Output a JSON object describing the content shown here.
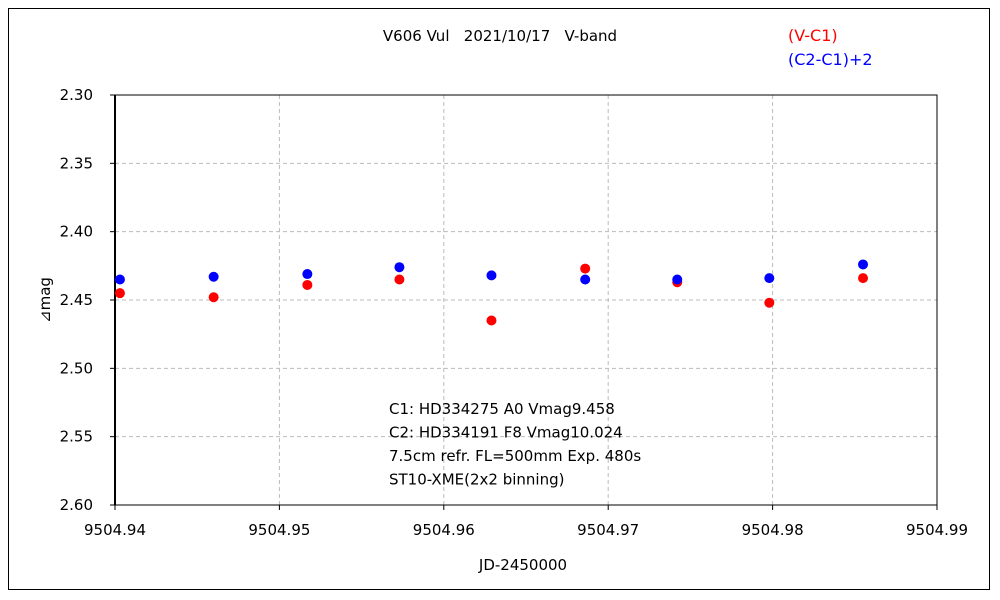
{
  "chart_data": {
    "type": "scatter",
    "title": "V606 Vul   2021/10/17   V-band",
    "xlabel": "JD-2450000",
    "ylabel": "⊿mag",
    "xlim": [
      9504.94,
      9504.99
    ],
    "ylim": [
      2.3,
      2.6
    ],
    "y_inverted": true,
    "grid": true,
    "x_ticks": [
      "9504.94",
      "9504.95",
      "9504.96",
      "9504.97",
      "9504.98",
      "9504.99"
    ],
    "y_ticks": [
      "2.30",
      "2.35",
      "2.40",
      "2.45",
      "2.50",
      "2.55",
      "2.60"
    ],
    "legend_placement": "top-right",
    "series": [
      {
        "name": "(V-C1)",
        "color": "#ff0000",
        "x": [
          9504.9403,
          9504.946,
          9504.9517,
          9504.9573,
          9504.9629,
          9504.9686,
          9504.9742,
          9504.9798,
          9504.9855
        ],
        "y": [
          2.445,
          2.448,
          2.439,
          2.435,
          2.465,
          2.427,
          2.437,
          2.452,
          2.434
        ]
      },
      {
        "name": "(C2-C1)+2",
        "color": "#0000ff",
        "x": [
          9504.9403,
          9504.946,
          9504.9517,
          9504.9573,
          9504.9629,
          9504.9686,
          9504.9742,
          9504.9798,
          9504.9855
        ],
        "y": [
          2.435,
          2.433,
          2.431,
          2.426,
          2.432,
          2.435,
          2.435,
          2.434,
          2.424
        ]
      }
    ],
    "annotations": [
      "C1: HD334275 A0 Vmag9.458",
      "C2: HD334191 F8  Vmag10.024",
      "7.5cm refr. FL=500mm Exp. 480s",
      "ST10-XME(2x2 binning)"
    ]
  }
}
